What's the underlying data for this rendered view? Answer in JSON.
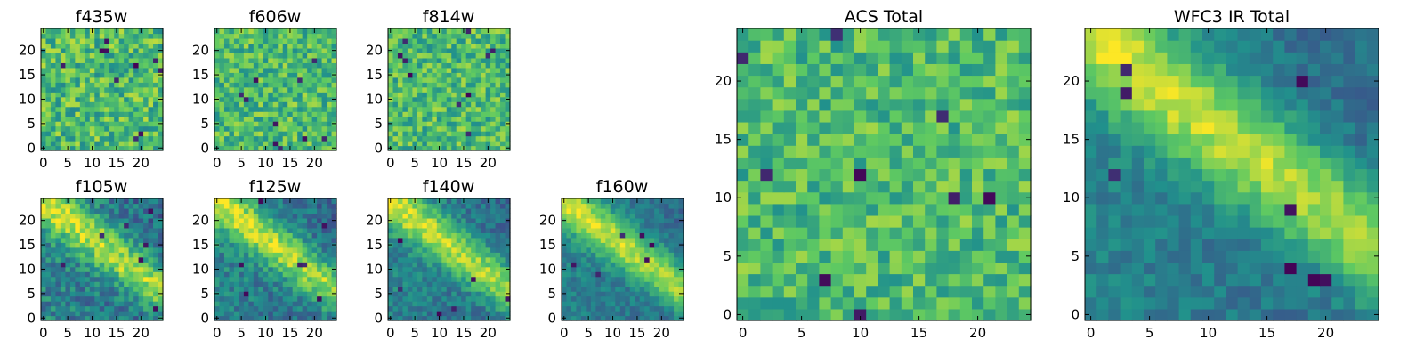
{
  "figure": {
    "background": "#ffffff",
    "colormap": "viridis",
    "colormap_stops": [
      "#440154",
      "#3b528b",
      "#21918c",
      "#5ec962",
      "#fde725"
    ]
  },
  "chart_data": [
    {
      "type": "heatmap",
      "title": "f435w",
      "grid_size": 25,
      "xticks": [
        "0",
        "5",
        "10",
        "15",
        "20"
      ],
      "yticks": [
        "0",
        "5",
        "10",
        "15",
        "20"
      ],
      "xlim": [
        -0.5,
        24.5
      ],
      "ylim": [
        -0.5,
        24.5
      ],
      "pattern": {
        "trend": "flat",
        "noise": 0.22,
        "dark_spots": 10,
        "seed": 11
      }
    },
    {
      "type": "heatmap",
      "title": "f606w",
      "grid_size": 25,
      "xticks": [
        "0",
        "5",
        "10",
        "15",
        "20"
      ],
      "yticks": [
        "0",
        "5",
        "10",
        "15",
        "20"
      ],
      "xlim": [
        -0.5,
        24.5
      ],
      "ylim": [
        -0.5,
        24.5
      ],
      "pattern": {
        "trend": "flat",
        "noise": 0.2,
        "dark_spots": 10,
        "seed": 23
      }
    },
    {
      "type": "heatmap",
      "title": "f814w",
      "grid_size": 25,
      "xticks": [
        "0",
        "5",
        "10",
        "15",
        "20"
      ],
      "yticks": [
        "0",
        "5",
        "10",
        "15",
        "20"
      ],
      "xlim": [
        -0.5,
        24.5
      ],
      "ylim": [
        -0.5,
        24.5
      ],
      "pattern": {
        "trend": "flat",
        "noise": 0.2,
        "dark_spots": 10,
        "seed": 37
      }
    },
    {
      "type": "heatmap",
      "title": "f105w",
      "grid_size": 25,
      "xticks": [
        "0",
        "5",
        "10",
        "15",
        "20"
      ],
      "yticks": [
        "0",
        "5",
        "10",
        "15",
        "20"
      ],
      "xlim": [
        -0.5,
        24.5
      ],
      "ylim": [
        -0.5,
        24.5
      ],
      "pattern": {
        "trend": "diagonal",
        "noise": 0.16,
        "dark_spots": 7,
        "seed": 41
      }
    },
    {
      "type": "heatmap",
      "title": "f125w",
      "grid_size": 25,
      "xticks": [
        "0",
        "5",
        "10",
        "15",
        "20"
      ],
      "yticks": [
        "0",
        "5",
        "10",
        "15",
        "20"
      ],
      "xlim": [
        -0.5,
        24.5
      ],
      "ylim": [
        -0.5,
        24.5
      ],
      "pattern": {
        "trend": "diagonal",
        "noise": 0.14,
        "dark_spots": 7,
        "seed": 53
      }
    },
    {
      "type": "heatmap",
      "title": "f140w",
      "grid_size": 25,
      "xticks": [
        "0",
        "5",
        "10",
        "15",
        "20"
      ],
      "yticks": [
        "0",
        "5",
        "10",
        "15",
        "20"
      ],
      "xlim": [
        -0.5,
        24.5
      ],
      "ylim": [
        -0.5,
        24.5
      ],
      "pattern": {
        "trend": "diagonal",
        "noise": 0.12,
        "dark_spots": 6,
        "seed": 67
      }
    },
    {
      "type": "heatmap",
      "title": "f160w",
      "grid_size": 25,
      "xticks": [
        "0",
        "5",
        "10",
        "15",
        "20"
      ],
      "yticks": [
        "0",
        "5",
        "10",
        "15",
        "20"
      ],
      "xlim": [
        -0.5,
        24.5
      ],
      "ylim": [
        -0.5,
        24.5
      ],
      "pattern": {
        "trend": "diagonal",
        "noise": 0.1,
        "dark_spots": 6,
        "seed": 79
      }
    },
    {
      "type": "heatmap",
      "title": "ACS Total",
      "grid_size": 25,
      "xticks": [
        "0",
        "5",
        "10",
        "15",
        "20"
      ],
      "yticks": [
        "0",
        "5",
        "10",
        "15",
        "20"
      ],
      "xlim": [
        -0.5,
        24.5
      ],
      "ylim": [
        -0.5,
        24.5
      ],
      "pattern": {
        "trend": "flat",
        "noise": 0.18,
        "dark_spots": 9,
        "seed": 97
      }
    },
    {
      "type": "heatmap",
      "title": "WFC3 IR Total",
      "grid_size": 25,
      "xticks": [
        "0",
        "5",
        "10",
        "15",
        "20"
      ],
      "yticks": [
        "0",
        "5",
        "10",
        "15",
        "20"
      ],
      "xlim": [
        -0.5,
        24.5
      ],
      "ylim": [
        -0.5,
        24.5
      ],
      "pattern": {
        "trend": "diagonal",
        "noise": 0.09,
        "dark_spots": 8,
        "seed": 113
      }
    }
  ]
}
